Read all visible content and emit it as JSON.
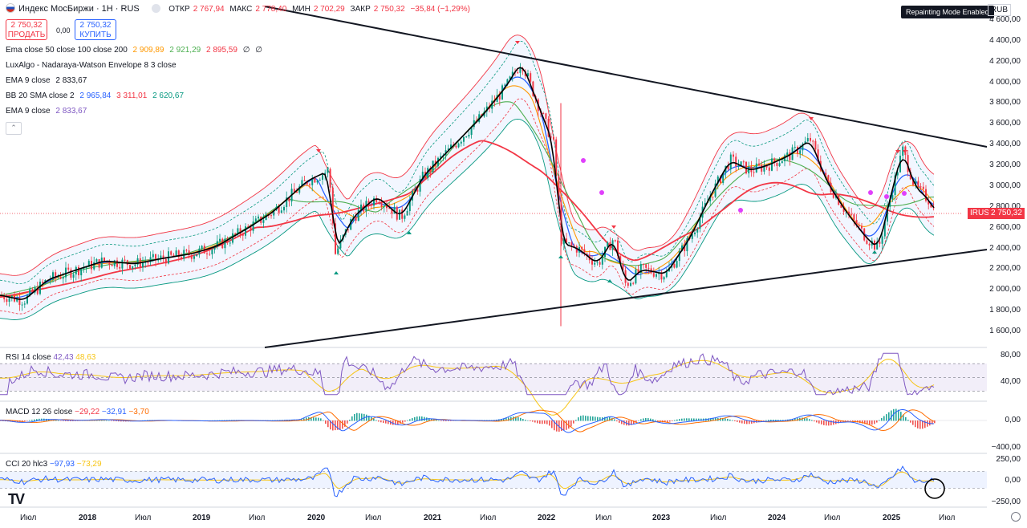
{
  "header": {
    "title": "Индекс МосБиржи · 1Н · RUS",
    "ohlc": [
      {
        "label": "ОТКР",
        "value": "2 767,94"
      },
      {
        "label": "МАКС",
        "value": "2 778,40"
      },
      {
        "label": "МИН",
        "value": "2 702,29"
      },
      {
        "label": "ЗАКР",
        "value": "2 750,32"
      },
      {
        "label": "",
        "value": "−35,84 (−1,29%)"
      }
    ],
    "sell_price": "2 750,32",
    "sell_label": "ПРОДАТЬ",
    "spread": "0,00",
    "buy_price": "2 750,32",
    "buy_label": "КУПИТЬ",
    "repaint_badge": "Repainting Mode Enabled",
    "currency": "RUB"
  },
  "indicators": {
    "ema_multi": {
      "label": "Ema close 50 close 100 close 200",
      "v1": "2 909,89",
      "v2": "2 921,29",
      "v3": "2 895,59",
      "v4": "∅",
      "v5": "∅"
    },
    "luxalgo": {
      "label": "LuxAlgo - Nadaraya-Watson Envelope 8 3 close"
    },
    "ema9a": {
      "label": "EMA 9 close",
      "v1": "2 833,67"
    },
    "bb": {
      "label": "BB 20 SMA close 2",
      "v1": "2 965,84",
      "v2": "3 311,01",
      "v3": "2 620,67"
    },
    "ema9b": {
      "label": "EMA 9 close",
      "v1": "2 833,67"
    }
  },
  "panes": {
    "rsi": {
      "label": "RSI 14 close",
      "v1": "42,43",
      "v2": "48,63"
    },
    "macd": {
      "label": "MACD 12 26 close",
      "v1": "−29,22",
      "v2": "−32,91",
      "v3": "−3,70"
    },
    "cci": {
      "label": "CCI 20 hlc3",
      "v1": "−97,93",
      "v2": "−73,29"
    }
  },
  "price_axis": [
    "4 600,00",
    "4 400,00",
    "4 200,00",
    "4 000,00",
    "3 800,00",
    "3 600,00",
    "3 400,00",
    "3 200,00",
    "3 000,00",
    "2 800,00",
    "2 600,00",
    "2 400,00",
    "2 200,00",
    "2 000,00",
    "1 800,00",
    "1 600,00"
  ],
  "last_price_symbol": "IRUS",
  "last_price": "2 750,32",
  "rsi_axis": [
    "80,00",
    "40,00"
  ],
  "macd_axis": [
    "0,00",
    "−400,00"
  ],
  "cci_axis": [
    "250,00",
    "0,00",
    "−250,00"
  ],
  "time_axis": [
    "Июл",
    "2018",
    "Июл",
    "2019",
    "Июл",
    "2020",
    "Июл",
    "2021",
    "Июл",
    "2022",
    "Июл",
    "2023",
    "Июл",
    "2024",
    "Июл",
    "2025",
    "Июл"
  ],
  "colors": {
    "up": "#089981",
    "down": "#f23645",
    "ema50": "#4caf50",
    "ema100": "#ff9800",
    "ema200": "#f23645",
    "ema9": "#000000",
    "ema9b": "#7e57c2",
    "bb_basis": "#2962ff",
    "bb_band": "#f23645",
    "nw": "#089981",
    "rsi": "#7e57c2",
    "macd": "#2962ff",
    "signal": "#ff6d00",
    "cci": "#2962ff"
  },
  "chart_data": {
    "type": "candlestick",
    "title": "Индекс МосБиржи · 1Н · RUS",
    "ylim": [
      1500,
      4700
    ],
    "x": [
      "2017-07",
      "2018-01",
      "2018-07",
      "2019-01",
      "2019-07",
      "2020-01",
      "2020-07",
      "2021-01",
      "2021-07",
      "2022-01",
      "2022-07",
      "2023-01",
      "2023-07",
      "2024-01",
      "2024-07",
      "2025-01",
      "2025-07"
    ],
    "close_approx": [
      2000,
      2250,
      2300,
      2450,
      2750,
      3100,
      2800,
      3450,
      3900,
      3500,
      2200,
      2150,
      3100,
      3200,
      2900,
      2850,
      2750
    ],
    "last": 2750.32
  }
}
